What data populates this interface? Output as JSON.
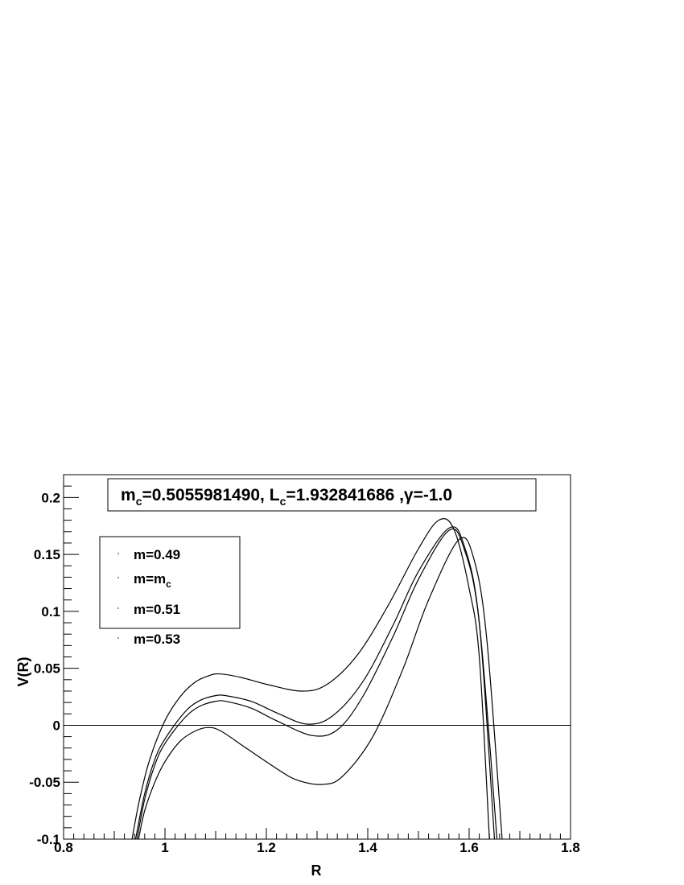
{
  "chart_data": {
    "type": "line",
    "title": {
      "m_symbol": "m",
      "m_sub": "c",
      "m_value": "=0.5055981490, ",
      "l_symbol": "L",
      "l_sub": "c",
      "l_value": "=1.932841686 ,",
      "gamma_symbol": "γ",
      "gamma_value": "=-1.0"
    },
    "xlabel": "R",
    "ylabel": "V(R)",
    "xlim": [
      0.8,
      1.8
    ],
    "ylim": [
      -0.1,
      0.22
    ],
    "x_ticks": [
      0.8,
      1.0,
      1.2,
      1.4,
      1.6,
      1.8
    ],
    "x_tick_labels": [
      "0.8",
      "1",
      "1.2",
      "1.4",
      "1.6",
      "1.8"
    ],
    "y_ticks": [
      -0.1,
      -0.05,
      0,
      0.05,
      0.1,
      0.15,
      0.2
    ],
    "y_tick_labels": [
      "-0.1",
      "-0.05",
      "0",
      "0.05",
      "0.1",
      "0.15",
      "0.2"
    ],
    "reference_line_y": 0,
    "legend": {
      "placement": "top-left",
      "entries": [
        {
          "text": "m=0.49"
        },
        {
          "text": "m=m",
          "sub": "c"
        },
        {
          "text": "m=0.51"
        },
        {
          "text": "m=0.53"
        }
      ]
    },
    "series": [
      {
        "label": "m=0.49",
        "x": [
          0.935,
          0.95,
          0.97,
          1.0,
          1.03,
          1.06,
          1.09,
          1.11,
          1.15,
          1.2,
          1.27,
          1.32,
          1.38,
          1.44,
          1.5,
          1.54,
          1.57,
          1.6,
          1.62,
          1.64
        ],
        "y": [
          -0.1,
          -0.065,
          -0.03,
          0.004,
          0.025,
          0.038,
          0.044,
          0.045,
          0.042,
          0.036,
          0.03,
          0.036,
          0.062,
          0.105,
          0.155,
          0.18,
          0.172,
          0.12,
          0.06,
          -0.1
        ]
      },
      {
        "label": "m=m_c",
        "x": [
          0.942,
          0.96,
          0.98,
          1.0,
          1.04,
          1.07,
          1.1,
          1.12,
          1.17,
          1.22,
          1.28,
          1.33,
          1.39,
          1.45,
          1.5,
          1.56,
          1.59,
          1.62,
          1.65
        ],
        "y": [
          -0.1,
          -0.06,
          -0.03,
          -0.012,
          0.012,
          0.022,
          0.026,
          0.026,
          0.021,
          0.011,
          0.001,
          0.008,
          0.038,
          0.088,
          0.135,
          0.173,
          0.158,
          0.09,
          -0.1
        ]
      },
      {
        "label": "m=0.51",
        "x": [
          0.945,
          0.96,
          0.98,
          1.0,
          1.04,
          1.07,
          1.1,
          1.12,
          1.17,
          1.22,
          1.29,
          1.34,
          1.39,
          1.45,
          1.5,
          1.56,
          1.59,
          1.62,
          1.655
        ],
        "y": [
          -0.1,
          -0.065,
          -0.035,
          -0.016,
          0.007,
          0.017,
          0.021,
          0.021,
          0.015,
          0.004,
          -0.009,
          -0.004,
          0.025,
          0.078,
          0.128,
          0.171,
          0.155,
          0.09,
          -0.1
        ]
      },
      {
        "label": "m=0.53",
        "x": [
          0.948,
          0.96,
          0.98,
          1.0,
          1.03,
          1.06,
          1.085,
          1.11,
          1.16,
          1.22,
          1.26,
          1.31,
          1.35,
          1.41,
          1.47,
          1.52,
          1.58,
          1.61,
          1.635,
          1.665
        ],
        "y": [
          -0.1,
          -0.075,
          -0.05,
          -0.032,
          -0.014,
          -0.005,
          -0.002,
          -0.005,
          -0.02,
          -0.038,
          -0.048,
          -0.052,
          -0.045,
          -0.01,
          0.05,
          0.11,
          0.163,
          0.145,
          0.075,
          -0.1
        ]
      }
    ]
  }
}
